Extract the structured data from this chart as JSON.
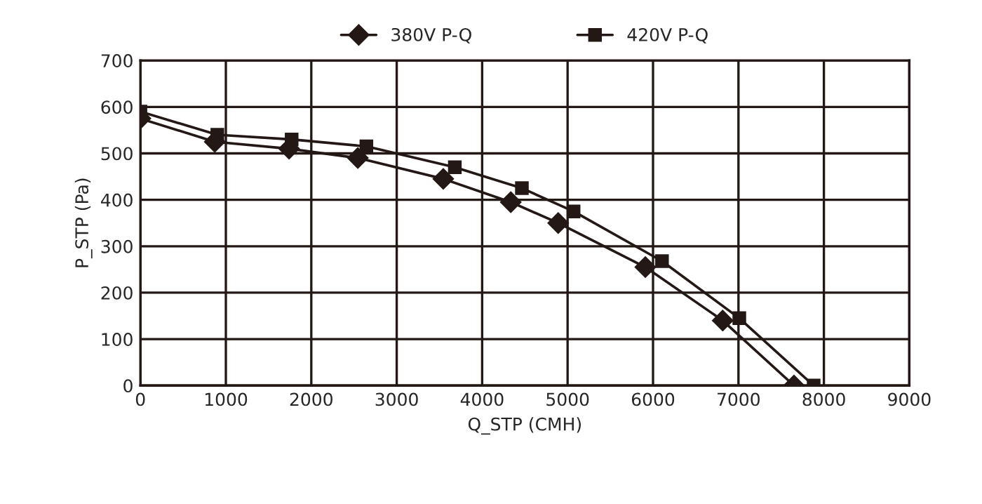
{
  "chart_data": {
    "type": "line",
    "xlabel": "Q_STP (CMH)",
    "ylabel": "P_STP (Pa)",
    "xlim": [
      0,
      9000
    ],
    "ylim": [
      0,
      700
    ],
    "xticks": [
      0,
      1000,
      2000,
      3000,
      4000,
      5000,
      6000,
      7000,
      8000,
      9000
    ],
    "yticks": [
      0,
      100,
      200,
      300,
      400,
      500,
      600,
      700
    ],
    "grid": true,
    "legend": "top",
    "line_style": "solid",
    "series": [
      {
        "name": "380V P-Q",
        "color": "#231815",
        "marker": "diamond",
        "x": [
          0,
          870,
          1740,
          2545,
          3545,
          4335,
          4890,
          5910,
          6815,
          7650
        ],
        "values": [
          575,
          525,
          510,
          490,
          445,
          395,
          350,
          255,
          140,
          0
        ]
      },
      {
        "name": "420V P-Q",
        "color": "#231815",
        "marker": "square",
        "x": [
          0,
          900,
          1770,
          2645,
          3680,
          4465,
          5070,
          6105,
          7010,
          7880
        ],
        "values": [
          590,
          540,
          530,
          515,
          470,
          425,
          375,
          268,
          145,
          0
        ]
      }
    ]
  }
}
